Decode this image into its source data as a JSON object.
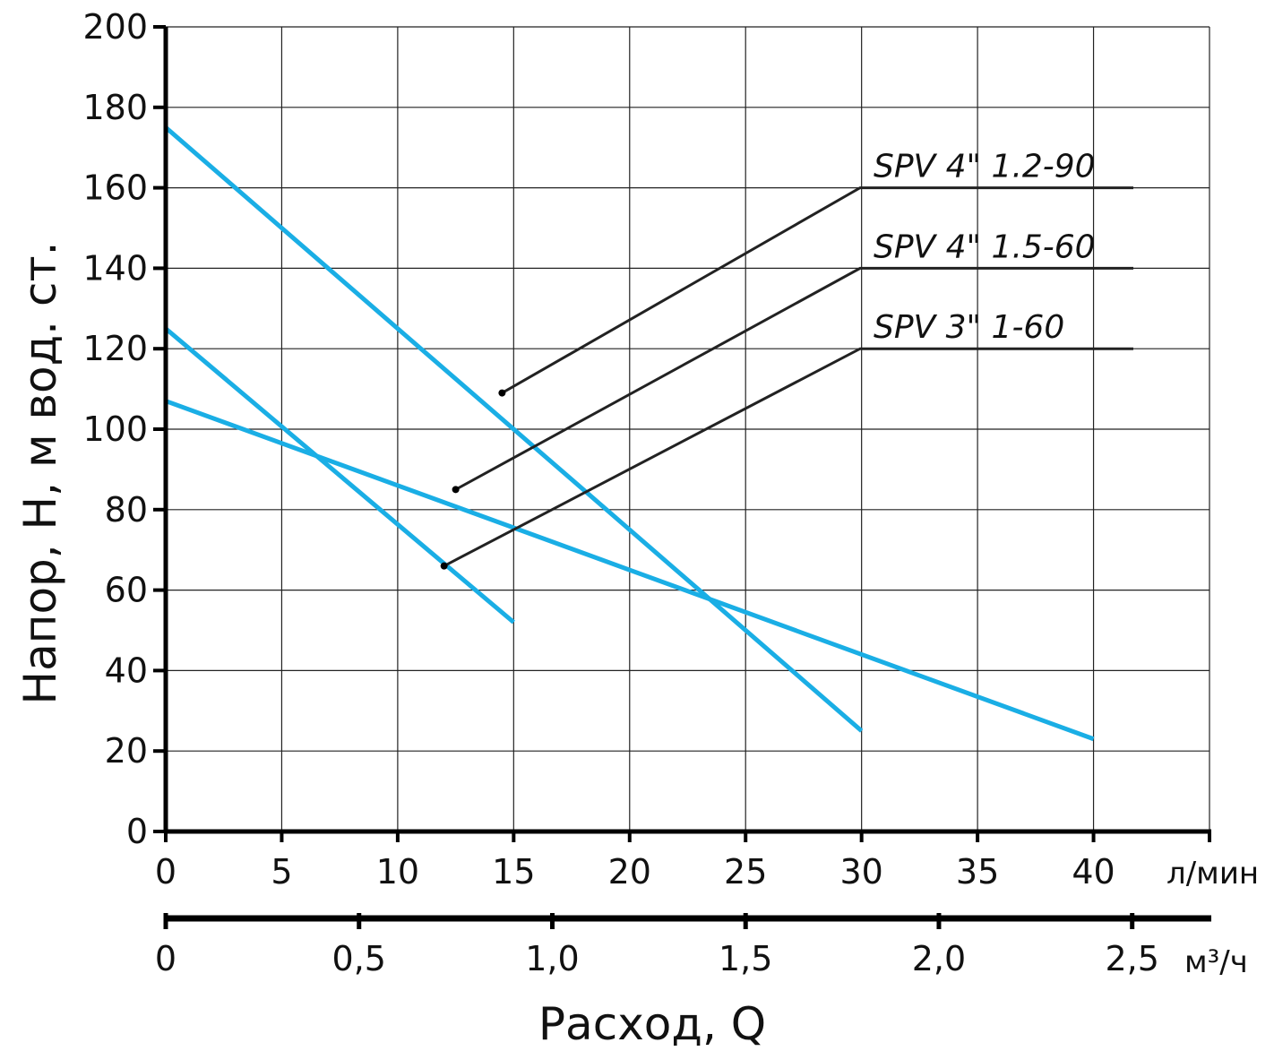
{
  "chart_data": {
    "type": "line",
    "xlabel": "Расход, Q",
    "ylabel": "Напор, H, м вод. ст.",
    "x_unit": "л/мин",
    "x2_unit": "м³/ч",
    "xlim": [
      0,
      45
    ],
    "ylim": [
      0,
      200
    ],
    "x_ticks": [
      0,
      5,
      10,
      15,
      20,
      25,
      30,
      35,
      40
    ],
    "y_ticks": [
      0,
      20,
      40,
      60,
      80,
      100,
      120,
      140,
      160,
      180,
      200
    ],
    "x2_ticks": [
      {
        "value": 0,
        "label": "0"
      },
      {
        "value": 0.5,
        "label": "0,5"
      },
      {
        "value": 1.0,
        "label": "1,0"
      },
      {
        "value": 1.5,
        "label": "1,5"
      },
      {
        "value": 2.0,
        "label": "2,0"
      },
      {
        "value": 2.5,
        "label": "2,5"
      }
    ],
    "grid": true,
    "series": [
      {
        "name": "SPV 4\" 1.2-90",
        "x": [
          0,
          30
        ],
        "y": [
          175,
          25
        ],
        "label_y": 160,
        "marker": [
          14.5,
          109
        ]
      },
      {
        "name": "SPV 4\" 1.5-60",
        "x": [
          0,
          40
        ],
        "y": [
          107,
          23
        ],
        "label_y": 140,
        "marker": [
          12.5,
          85
        ]
      },
      {
        "name": "SPV 3\" 1-60",
        "x": [
          0,
          15
        ],
        "y": [
          125,
          52
        ],
        "label_y": 120,
        "marker": [
          12,
          66
        ]
      }
    ],
    "colors": {
      "curve": "#1aaee5",
      "leader": "#222222",
      "grid": "#222222"
    }
  }
}
